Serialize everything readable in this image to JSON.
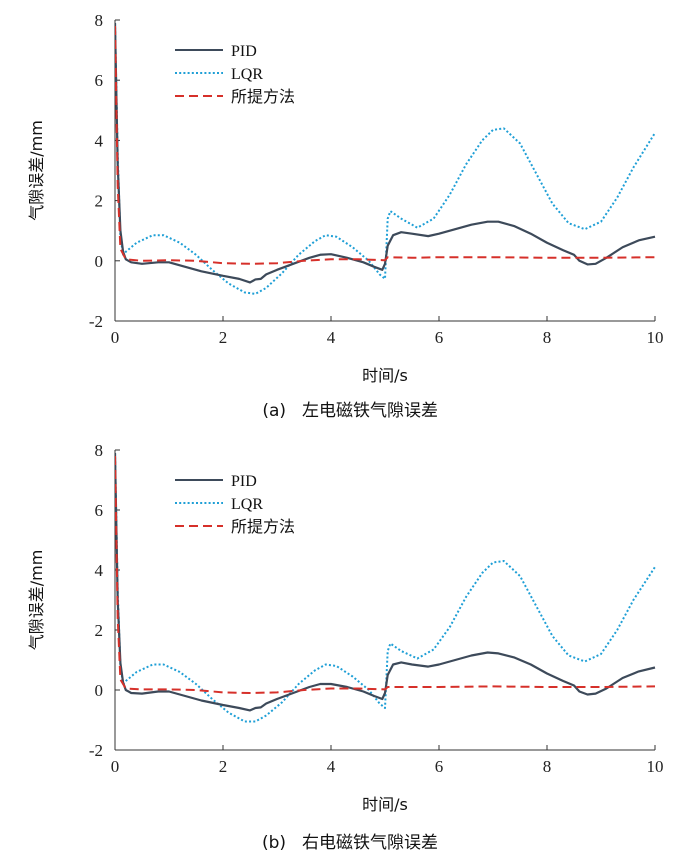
{
  "chart_data": [
    {
      "type": "line",
      "caption_label": "(a)",
      "caption_text": "左电磁铁气隙误差",
      "xlabel": "时间/s",
      "ylabel": "气隙误差/mm",
      "xlim": [
        0,
        10
      ],
      "ylim": [
        -2,
        8
      ],
      "xticks": [
        "0",
        "2",
        "4",
        "6",
        "8",
        "10"
      ],
      "yticks": [
        "-2",
        "0",
        "2",
        "4",
        "6",
        "8"
      ],
      "legend_position": "top-left",
      "series": [
        {
          "name": "PID",
          "color": "#3d4a5a",
          "style": "solid",
          "points": [
            [
              0,
              7.9
            ],
            [
              0.05,
              3.2
            ],
            [
              0.1,
              1.0
            ],
            [
              0.15,
              0.3
            ],
            [
              0.2,
              0.05
            ],
            [
              0.3,
              -0.05
            ],
            [
              0.5,
              -0.1
            ],
            [
              0.8,
              -0.05
            ],
            [
              1.0,
              -0.05
            ],
            [
              1.3,
              -0.2
            ],
            [
              1.6,
              -0.35
            ],
            [
              2.0,
              -0.5
            ],
            [
              2.3,
              -0.6
            ],
            [
              2.5,
              -0.72
            ],
            [
              2.6,
              -0.62
            ],
            [
              2.7,
              -0.6
            ],
            [
              2.8,
              -0.45
            ],
            [
              3.0,
              -0.3
            ],
            [
              3.3,
              -0.1
            ],
            [
              3.6,
              0.1
            ],
            [
              3.8,
              0.2
            ],
            [
              4.0,
              0.22
            ],
            [
              4.3,
              0.1
            ],
            [
              4.6,
              -0.05
            ],
            [
              4.8,
              -0.2
            ],
            [
              4.95,
              -0.3
            ],
            [
              5.0,
              -0.1
            ],
            [
              5.05,
              0.5
            ],
            [
              5.15,
              0.85
            ],
            [
              5.3,
              0.95
            ],
            [
              5.5,
              0.9
            ],
            [
              5.8,
              0.82
            ],
            [
              6.0,
              0.9
            ],
            [
              6.3,
              1.05
            ],
            [
              6.6,
              1.2
            ],
            [
              6.9,
              1.3
            ],
            [
              7.1,
              1.3
            ],
            [
              7.4,
              1.15
            ],
            [
              7.7,
              0.9
            ],
            [
              8.0,
              0.6
            ],
            [
              8.3,
              0.35
            ],
            [
              8.5,
              0.2
            ],
            [
              8.6,
              0.0
            ],
            [
              8.75,
              -0.12
            ],
            [
              8.9,
              -0.1
            ],
            [
              9.1,
              0.1
            ],
            [
              9.4,
              0.45
            ],
            [
              9.7,
              0.68
            ],
            [
              10.0,
              0.8
            ]
          ]
        },
        {
          "name": "LQR",
          "color": "#1f9fd6",
          "style": "dotted",
          "points": [
            [
              0,
              7.9
            ],
            [
              0.05,
              3.5
            ],
            [
              0.1,
              0.8
            ],
            [
              0.15,
              0.2
            ],
            [
              0.2,
              0.3
            ],
            [
              0.4,
              0.6
            ],
            [
              0.7,
              0.85
            ],
            [
              0.9,
              0.85
            ],
            [
              1.2,
              0.6
            ],
            [
              1.5,
              0.2
            ],
            [
              1.8,
              -0.3
            ],
            [
              2.1,
              -0.75
            ],
            [
              2.4,
              -1.05
            ],
            [
              2.6,
              -1.1
            ],
            [
              2.8,
              -0.9
            ],
            [
              3.1,
              -0.4
            ],
            [
              3.4,
              0.2
            ],
            [
              3.7,
              0.65
            ],
            [
              3.9,
              0.85
            ],
            [
              4.1,
              0.8
            ],
            [
              4.4,
              0.45
            ],
            [
              4.7,
              0.0
            ],
            [
              4.9,
              -0.45
            ],
            [
              5.0,
              -0.6
            ],
            [
              5.05,
              1.4
            ],
            [
              5.1,
              1.65
            ],
            [
              5.3,
              1.4
            ],
            [
              5.6,
              1.1
            ],
            [
              5.9,
              1.4
            ],
            [
              6.2,
              2.2
            ],
            [
              6.5,
              3.2
            ],
            [
              6.8,
              4.0
            ],
            [
              7.0,
              4.35
            ],
            [
              7.2,
              4.4
            ],
            [
              7.5,
              3.9
            ],
            [
              7.8,
              2.9
            ],
            [
              8.1,
              1.9
            ],
            [
              8.4,
              1.25
            ],
            [
              8.7,
              1.05
            ],
            [
              9.0,
              1.3
            ],
            [
              9.3,
              2.1
            ],
            [
              9.6,
              3.1
            ],
            [
              10.0,
              4.25
            ]
          ]
        },
        {
          "name": "所提方法",
          "color": "#d6302a",
          "style": "dashed",
          "points": [
            [
              0,
              7.8
            ],
            [
              0.05,
              2.5
            ],
            [
              0.1,
              0.4
            ],
            [
              0.2,
              0.05
            ],
            [
              0.5,
              0.0
            ],
            [
              1.0,
              0.02
            ],
            [
              1.5,
              0.0
            ],
            [
              2.0,
              -0.08
            ],
            [
              2.5,
              -0.1
            ],
            [
              3.0,
              -0.08
            ],
            [
              3.5,
              0.0
            ],
            [
              4.0,
              0.05
            ],
            [
              4.5,
              0.05
            ],
            [
              5.0,
              0.02
            ],
            [
              5.05,
              0.12
            ],
            [
              5.5,
              0.1
            ],
            [
              6.0,
              0.12
            ],
            [
              7.0,
              0.12
            ],
            [
              8.0,
              0.1
            ],
            [
              9.0,
              0.1
            ],
            [
              10.0,
              0.12
            ]
          ]
        }
      ]
    },
    {
      "type": "line",
      "caption_label": "(b)",
      "caption_text": "右电磁铁气隙误差",
      "xlabel": "时间/s",
      "ylabel": "气隙误差/mm",
      "xlim": [
        0,
        10
      ],
      "ylim": [
        -2,
        8
      ],
      "xticks": [
        "0",
        "2",
        "4",
        "6",
        "8",
        "10"
      ],
      "yticks": [
        "-2",
        "0",
        "2",
        "4",
        "6",
        "8"
      ],
      "legend_position": "top-left",
      "series": [
        {
          "name": "PID",
          "color": "#3d4a5a",
          "style": "solid",
          "points": [
            [
              0,
              7.9
            ],
            [
              0.05,
              3.0
            ],
            [
              0.1,
              0.9
            ],
            [
              0.15,
              0.25
            ],
            [
              0.2,
              0.0
            ],
            [
              0.3,
              -0.1
            ],
            [
              0.5,
              -0.12
            ],
            [
              0.8,
              -0.05
            ],
            [
              1.0,
              -0.05
            ],
            [
              1.3,
              -0.2
            ],
            [
              1.6,
              -0.35
            ],
            [
              2.0,
              -0.5
            ],
            [
              2.3,
              -0.6
            ],
            [
              2.5,
              -0.68
            ],
            [
              2.6,
              -0.6
            ],
            [
              2.7,
              -0.58
            ],
            [
              2.8,
              -0.45
            ],
            [
              3.0,
              -0.3
            ],
            [
              3.3,
              -0.1
            ],
            [
              3.6,
              0.1
            ],
            [
              3.8,
              0.2
            ],
            [
              4.0,
              0.2
            ],
            [
              4.3,
              0.1
            ],
            [
              4.6,
              -0.05
            ],
            [
              4.8,
              -0.2
            ],
            [
              4.95,
              -0.3
            ],
            [
              5.0,
              -0.1
            ],
            [
              5.05,
              0.5
            ],
            [
              5.15,
              0.85
            ],
            [
              5.3,
              0.92
            ],
            [
              5.5,
              0.85
            ],
            [
              5.8,
              0.78
            ],
            [
              6.0,
              0.85
            ],
            [
              6.3,
              1.0
            ],
            [
              6.6,
              1.15
            ],
            [
              6.9,
              1.25
            ],
            [
              7.1,
              1.22
            ],
            [
              7.4,
              1.08
            ],
            [
              7.7,
              0.85
            ],
            [
              8.0,
              0.55
            ],
            [
              8.3,
              0.3
            ],
            [
              8.5,
              0.15
            ],
            [
              8.6,
              -0.05
            ],
            [
              8.75,
              -0.15
            ],
            [
              8.9,
              -0.12
            ],
            [
              9.1,
              0.05
            ],
            [
              9.4,
              0.4
            ],
            [
              9.7,
              0.62
            ],
            [
              10.0,
              0.75
            ]
          ]
        },
        {
          "name": "LQR",
          "color": "#1f9fd6",
          "style": "dotted",
          "points": [
            [
              0,
              7.9
            ],
            [
              0.05,
              3.3
            ],
            [
              0.1,
              0.8
            ],
            [
              0.15,
              0.2
            ],
            [
              0.2,
              0.3
            ],
            [
              0.4,
              0.6
            ],
            [
              0.7,
              0.85
            ],
            [
              0.9,
              0.85
            ],
            [
              1.2,
              0.6
            ],
            [
              1.5,
              0.2
            ],
            [
              1.8,
              -0.3
            ],
            [
              2.1,
              -0.75
            ],
            [
              2.4,
              -1.05
            ],
            [
              2.6,
              -1.05
            ],
            [
              2.8,
              -0.85
            ],
            [
              3.1,
              -0.4
            ],
            [
              3.4,
              0.2
            ],
            [
              3.7,
              0.65
            ],
            [
              3.9,
              0.85
            ],
            [
              4.1,
              0.8
            ],
            [
              4.4,
              0.45
            ],
            [
              4.7,
              0.0
            ],
            [
              4.9,
              -0.45
            ],
            [
              5.0,
              -0.6
            ],
            [
              5.05,
              1.3
            ],
            [
              5.1,
              1.55
            ],
            [
              5.3,
              1.3
            ],
            [
              5.6,
              1.05
            ],
            [
              5.9,
              1.35
            ],
            [
              6.2,
              2.1
            ],
            [
              6.5,
              3.1
            ],
            [
              6.8,
              3.9
            ],
            [
              7.0,
              4.25
            ],
            [
              7.2,
              4.3
            ],
            [
              7.5,
              3.8
            ],
            [
              7.8,
              2.8
            ],
            [
              8.1,
              1.8
            ],
            [
              8.4,
              1.15
            ],
            [
              8.7,
              0.95
            ],
            [
              9.0,
              1.2
            ],
            [
              9.3,
              2.0
            ],
            [
              9.6,
              3.0
            ],
            [
              10.0,
              4.1
            ]
          ]
        },
        {
          "name": "所提方法",
          "color": "#d6302a",
          "style": "dashed",
          "points": [
            [
              0,
              7.8
            ],
            [
              0.05,
              2.4
            ],
            [
              0.1,
              0.35
            ],
            [
              0.2,
              0.05
            ],
            [
              0.5,
              0.02
            ],
            [
              1.0,
              0.02
            ],
            [
              1.5,
              0.0
            ],
            [
              2.0,
              -0.08
            ],
            [
              2.5,
              -0.1
            ],
            [
              3.0,
              -0.08
            ],
            [
              3.5,
              0.0
            ],
            [
              4.0,
              0.05
            ],
            [
              4.5,
              0.05
            ],
            [
              5.0,
              0.02
            ],
            [
              5.05,
              0.1
            ],
            [
              5.5,
              0.1
            ],
            [
              6.0,
              0.1
            ],
            [
              7.0,
              0.12
            ],
            [
              8.0,
              0.1
            ],
            [
              9.0,
              0.1
            ],
            [
              10.0,
              0.12
            ]
          ]
        }
      ]
    }
  ]
}
